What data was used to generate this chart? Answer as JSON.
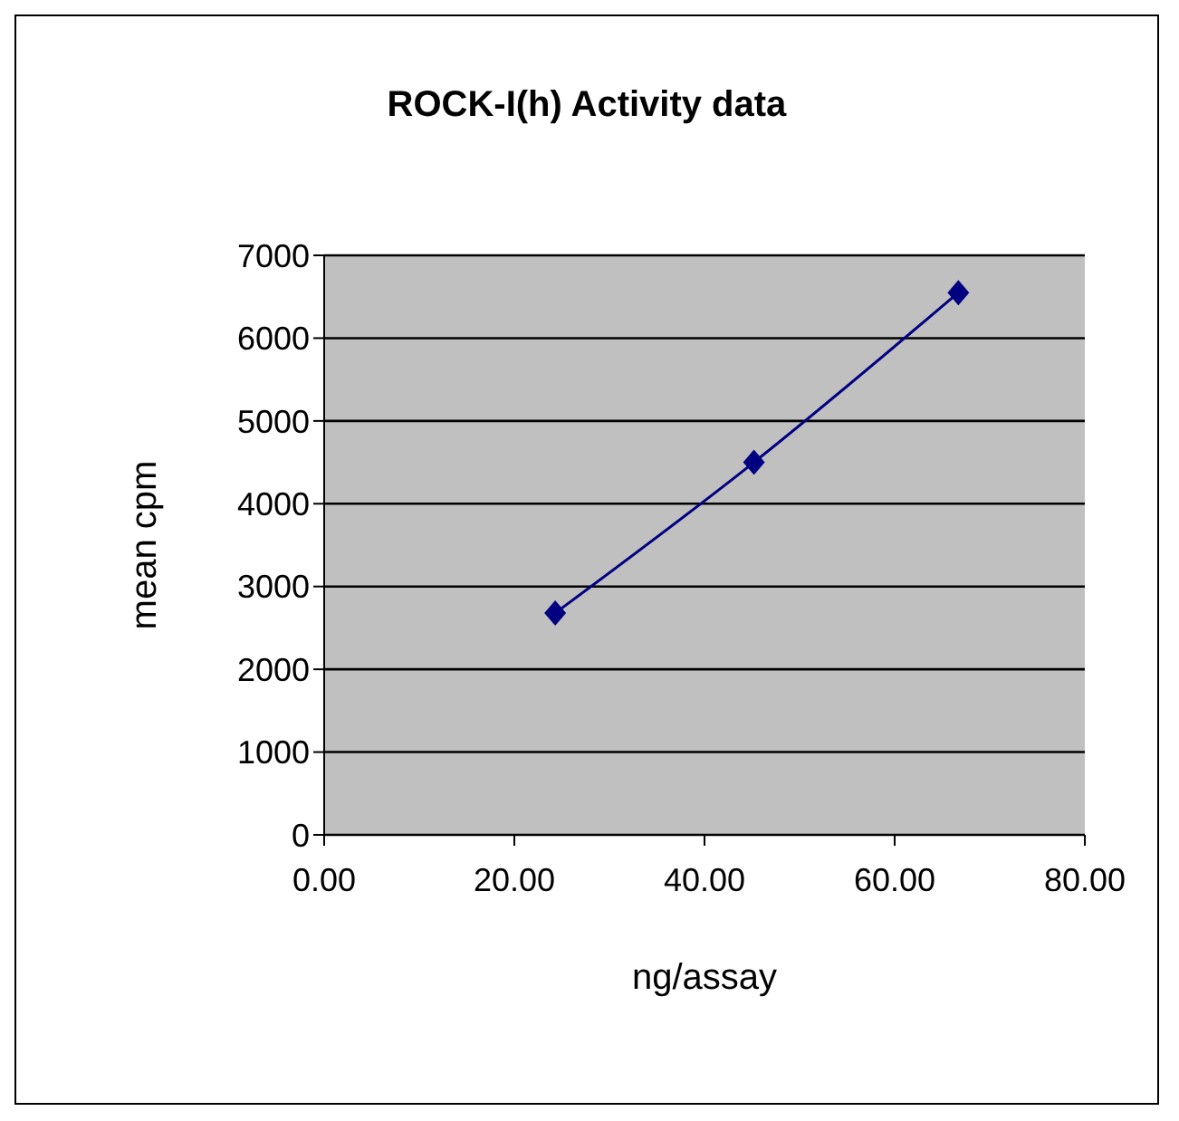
{
  "chart_data": {
    "type": "line",
    "title": "ROCK-I(h) Activity data",
    "xlabel": "ng/assay",
    "ylabel": "mean cpm",
    "x": [
      24.3,
      45.2,
      66.7
    ],
    "series": [
      {
        "color": "#000080",
        "values": [
          2680,
          4500,
          6550
        ]
      }
    ],
    "xlim": [
      0,
      80
    ],
    "xticks": [
      {
        "value": 0,
        "label": "0.00"
      },
      {
        "value": 20,
        "label": "20.00"
      },
      {
        "value": 40,
        "label": "40.00"
      },
      {
        "value": 60,
        "label": "60.00"
      },
      {
        "value": 80,
        "label": "80.00"
      }
    ],
    "ylim": [
      0,
      7000
    ],
    "yticks": [
      0,
      1000,
      2000,
      3000,
      4000,
      5000,
      6000,
      7000
    ],
    "grid": "y",
    "legend": false,
    "marker": "diamond",
    "line_style": "solid"
  }
}
